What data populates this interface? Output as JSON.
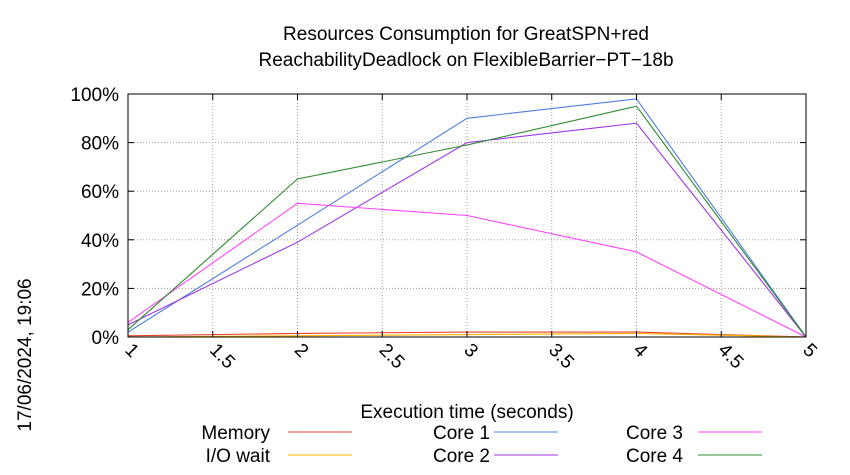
{
  "chart_data": {
    "type": "line",
    "title_line1": "Resources Consumption for GreatSPN+red",
    "title_line2": "ReachabilityDeadlock on FlexibleBarrier−PT−18b",
    "xlabel": "Execution time (seconds)",
    "ylabel": "",
    "timestamp": "17/06/2024, 19:06",
    "xlim": [
      1,
      5
    ],
    "ylim": [
      0,
      100
    ],
    "x_ticks": [
      {
        "value": 1,
        "label": "1"
      },
      {
        "value": 1.5,
        "label": "1.5"
      },
      {
        "value": 2,
        "label": "2"
      },
      {
        "value": 2.5,
        "label": "2.5"
      },
      {
        "value": 3,
        "label": "3"
      },
      {
        "value": 3.5,
        "label": "3.5"
      },
      {
        "value": 4,
        "label": "4"
      },
      {
        "value": 4.5,
        "label": "4.5"
      },
      {
        "value": 5,
        "label": "5"
      }
    ],
    "y_ticks": [
      {
        "value": 0,
        "label": "0%"
      },
      {
        "value": 20,
        "label": "20%"
      },
      {
        "value": 40,
        "label": "40%"
      },
      {
        "value": 60,
        "label": "60%"
      },
      {
        "value": 80,
        "label": "80%"
      },
      {
        "value": 100,
        "label": "100%"
      }
    ],
    "grid": true,
    "legend_position": "bottom",
    "series": [
      {
        "name": "Memory",
        "color": "#e8402a",
        "x": [
          1,
          2,
          3,
          4,
          5
        ],
        "values": [
          0.5,
          1.5,
          2,
          2,
          0
        ]
      },
      {
        "name": "I/O wait",
        "color": "#ffb000",
        "x": [
          1,
          2,
          3,
          4,
          5
        ],
        "values": [
          0,
          0.5,
          1,
          1.5,
          0
        ]
      },
      {
        "name": "Core 1",
        "color": "#4f7ee0",
        "x": [
          1,
          2,
          3,
          4,
          5
        ],
        "values": [
          2,
          46,
          90,
          98,
          0
        ]
      },
      {
        "name": "Core 2",
        "color": "#9f34e6",
        "x": [
          1,
          2,
          3,
          4,
          5
        ],
        "values": [
          5,
          39,
          80,
          88,
          0
        ]
      },
      {
        "name": "Core 3",
        "color": "#ff44ff",
        "x": [
          1,
          2,
          3,
          4,
          5
        ],
        "values": [
          6,
          55,
          50,
          35,
          0
        ]
      },
      {
        "name": "Core 4",
        "color": "#2e8b2e",
        "x": [
          1,
          2,
          3,
          4,
          5
        ],
        "values": [
          3,
          65,
          79,
          95,
          0
        ]
      }
    ]
  }
}
